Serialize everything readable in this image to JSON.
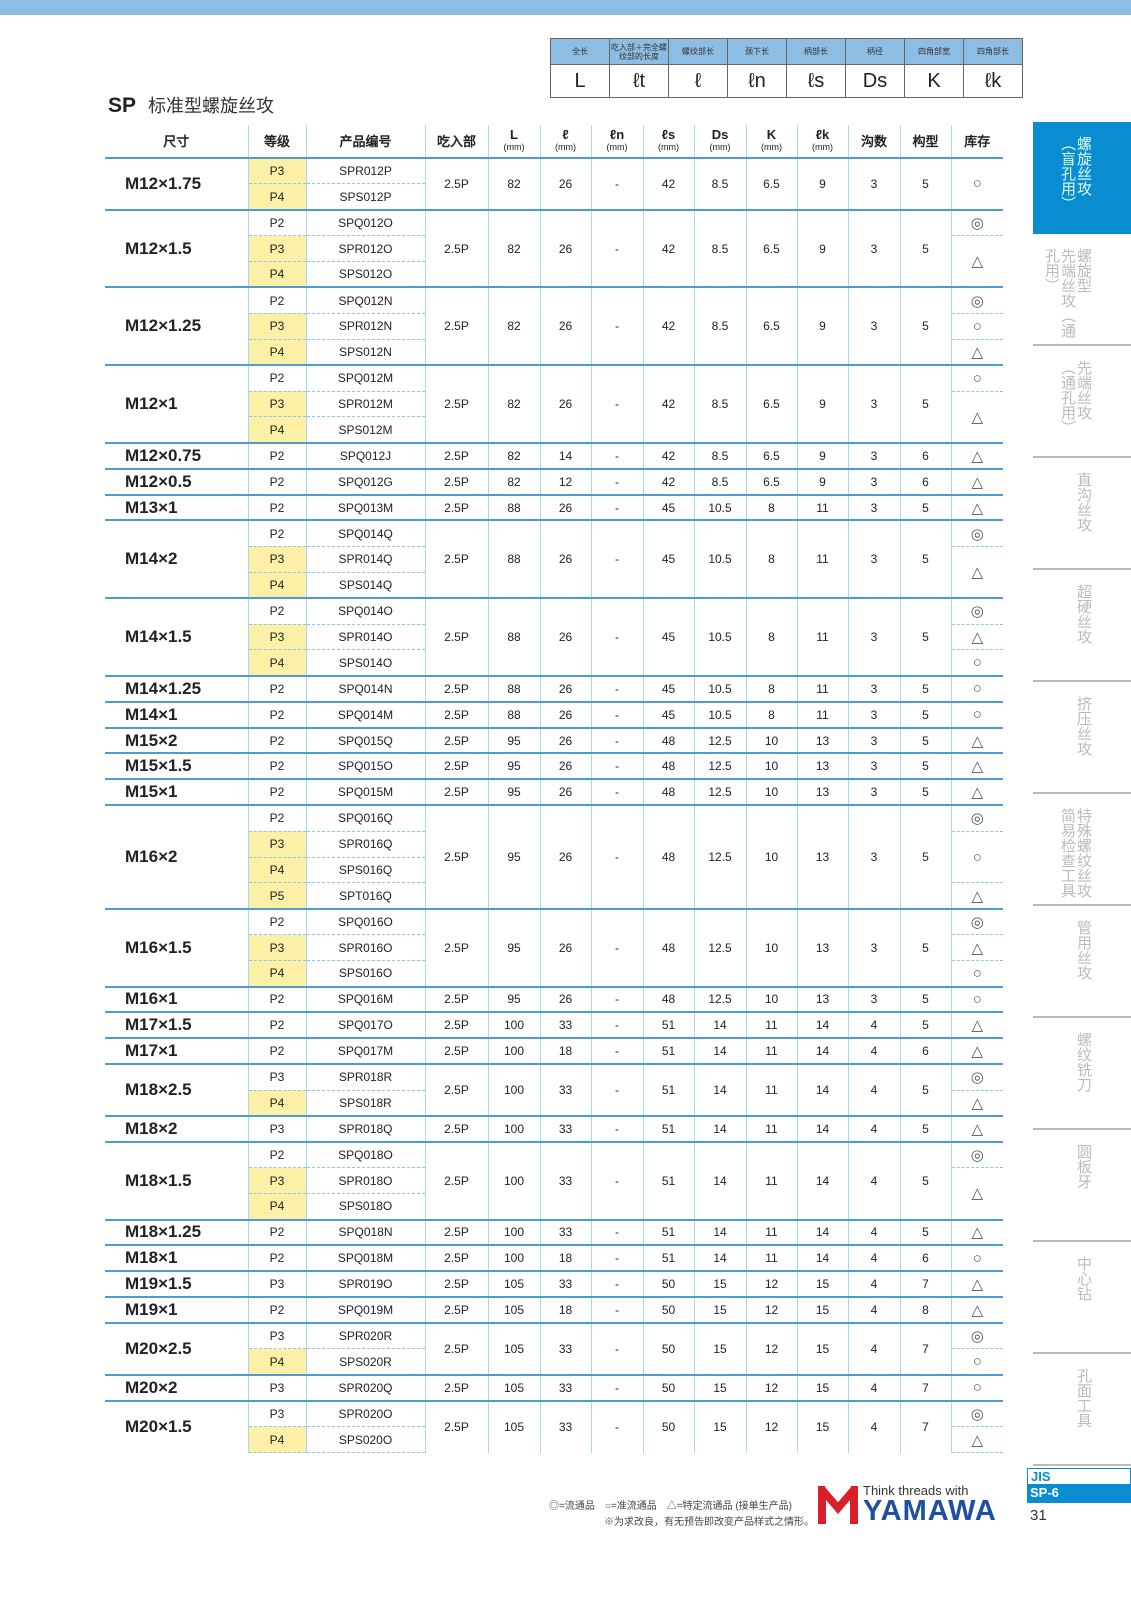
{
  "title": {
    "code": "SP",
    "name": "标准型螺旋丝攻"
  },
  "legend": {
    "labels": [
      "全长",
      "吃入部＋完全螺纹部的长度",
      "螺纹部长",
      "颈下长",
      "柄部长",
      "柄径",
      "四角部宽",
      "四角部长"
    ],
    "symbols": [
      "L",
      "ℓt",
      "ℓ",
      "ℓn",
      "ℓs",
      "Ds",
      "K",
      "ℓk"
    ]
  },
  "headers": [
    "尺寸",
    "等级",
    "产品编号",
    "吃入部",
    "L",
    "ℓ",
    "ℓn",
    "ℓs",
    "Ds",
    "K",
    "ℓk",
    "沟数",
    "构型",
    "库存"
  ],
  "unit": "(mm)",
  "colors": {
    "accent": "#0a8cd0",
    "highlight": "#fbf0a6",
    "grid": "#4e9bd0"
  },
  "groups": [
    {
      "size": "M12×1.75",
      "rows": [
        [
          "P3",
          "SPR012P",
          1
        ],
        [
          "P4",
          "SPS012P",
          1
        ]
      ],
      "v": [
        "2.5P",
        "82",
        "26",
        "-",
        "42",
        "8.5",
        "6.5",
        "9",
        "3",
        "5"
      ],
      "stock": [
        [
          "○",
          2
        ]
      ]
    },
    {
      "size": "M12×1.5",
      "rows": [
        [
          "P2",
          "SPQ012O",
          0
        ],
        [
          "P3",
          "SPR012O",
          1
        ],
        [
          "P4",
          "SPS012O",
          1
        ]
      ],
      "v": [
        "2.5P",
        "82",
        "26",
        "-",
        "42",
        "8.5",
        "6.5",
        "9",
        "3",
        "5"
      ],
      "stock": [
        [
          "◎",
          1
        ],
        [
          "△",
          2
        ]
      ]
    },
    {
      "size": "M12×1.25",
      "rows": [
        [
          "P2",
          "SPQ012N",
          0
        ],
        [
          "P3",
          "SPR012N",
          1
        ],
        [
          "P4",
          "SPS012N",
          1
        ]
      ],
      "v": [
        "2.5P",
        "82",
        "26",
        "-",
        "42",
        "8.5",
        "6.5",
        "9",
        "3",
        "5"
      ],
      "stock": [
        [
          "◎",
          1
        ],
        [
          "○",
          1
        ],
        [
          "△",
          1
        ]
      ]
    },
    {
      "size": "M12×1",
      "rows": [
        [
          "P2",
          "SPQ012M",
          0
        ],
        [
          "P3",
          "SPR012M",
          1
        ],
        [
          "P4",
          "SPS012M",
          1
        ]
      ],
      "v": [
        "2.5P",
        "82",
        "26",
        "-",
        "42",
        "8.5",
        "6.5",
        "9",
        "3",
        "5"
      ],
      "stock": [
        [
          "○",
          1
        ],
        [
          "△",
          2
        ]
      ]
    },
    {
      "size": "M12×0.75",
      "rows": [
        [
          "P2",
          "SPQ012J",
          0
        ]
      ],
      "v": [
        "2.5P",
        "82",
        "14",
        "-",
        "42",
        "8.5",
        "6.5",
        "9",
        "3",
        "6"
      ],
      "stock": [
        [
          "△",
          1
        ]
      ]
    },
    {
      "size": "M12×0.5",
      "rows": [
        [
          "P2",
          "SPQ012G",
          0
        ]
      ],
      "v": [
        "2.5P",
        "82",
        "12",
        "-",
        "42",
        "8.5",
        "6.5",
        "9",
        "3",
        "6"
      ],
      "stock": [
        [
          "△",
          1
        ]
      ]
    },
    {
      "size": "M13×1",
      "rows": [
        [
          "P2",
          "SPQ013M",
          0
        ]
      ],
      "v": [
        "2.5P",
        "88",
        "26",
        "-",
        "45",
        "10.5",
        "8",
        "11",
        "3",
        "5"
      ],
      "stock": [
        [
          "△",
          1
        ]
      ]
    },
    {
      "size": "M14×2",
      "rows": [
        [
          "P2",
          "SPQ014Q",
          0
        ],
        [
          "P3",
          "SPR014Q",
          1
        ],
        [
          "P4",
          "SPS014Q",
          1
        ]
      ],
      "v": [
        "2.5P",
        "88",
        "26",
        "-",
        "45",
        "10.5",
        "8",
        "11",
        "3",
        "5"
      ],
      "stock": [
        [
          "◎",
          1
        ],
        [
          "△",
          2
        ]
      ]
    },
    {
      "size": "M14×1.5",
      "rows": [
        [
          "P2",
          "SPQ014O",
          0
        ],
        [
          "P3",
          "SPR014O",
          1
        ],
        [
          "P4",
          "SPS014O",
          1
        ]
      ],
      "v": [
        "2.5P",
        "88",
        "26",
        "-",
        "45",
        "10.5",
        "8",
        "11",
        "3",
        "5"
      ],
      "stock": [
        [
          "◎",
          1
        ],
        [
          "△",
          1
        ],
        [
          "○",
          1
        ]
      ]
    },
    {
      "size": "M14×1.25",
      "rows": [
        [
          "P2",
          "SPQ014N",
          0
        ]
      ],
      "v": [
        "2.5P",
        "88",
        "26",
        "-",
        "45",
        "10.5",
        "8",
        "11",
        "3",
        "5"
      ],
      "stock": [
        [
          "○",
          1
        ]
      ]
    },
    {
      "size": "M14×1",
      "rows": [
        [
          "P2",
          "SPQ014M",
          0
        ]
      ],
      "v": [
        "2.5P",
        "88",
        "26",
        "-",
        "45",
        "10.5",
        "8",
        "11",
        "3",
        "5"
      ],
      "stock": [
        [
          "○",
          1
        ]
      ]
    },
    {
      "size": "M15×2",
      "rows": [
        [
          "P2",
          "SPQ015Q",
          0
        ]
      ],
      "v": [
        "2.5P",
        "95",
        "26",
        "-",
        "48",
        "12.5",
        "10",
        "13",
        "3",
        "5"
      ],
      "stock": [
        [
          "△",
          1
        ]
      ]
    },
    {
      "size": "M15×1.5",
      "rows": [
        [
          "P2",
          "SPQ015O",
          0
        ]
      ],
      "v": [
        "2.5P",
        "95",
        "26",
        "-",
        "48",
        "12.5",
        "10",
        "13",
        "3",
        "5"
      ],
      "stock": [
        [
          "△",
          1
        ]
      ]
    },
    {
      "size": "M15×1",
      "rows": [
        [
          "P2",
          "SPQ015M",
          0
        ]
      ],
      "v": [
        "2.5P",
        "95",
        "26",
        "-",
        "48",
        "12.5",
        "10",
        "13",
        "3",
        "5"
      ],
      "stock": [
        [
          "△",
          1
        ]
      ]
    },
    {
      "size": "M16×2",
      "rows": [
        [
          "P2",
          "SPQ016Q",
          0
        ],
        [
          "P3",
          "SPR016Q",
          1
        ],
        [
          "P4",
          "SPS016Q",
          1
        ],
        [
          "P5",
          "SPT016Q",
          1
        ]
      ],
      "v": [
        "2.5P",
        "95",
        "26",
        "-",
        "48",
        "12.5",
        "10",
        "13",
        "3",
        "5"
      ],
      "stock": [
        [
          "◎",
          1
        ],
        [
          "○",
          2
        ],
        [
          "△",
          1
        ]
      ]
    },
    {
      "size": "M16×1.5",
      "rows": [
        [
          "P2",
          "SPQ016O",
          0
        ],
        [
          "P3",
          "SPR016O",
          1
        ],
        [
          "P4",
          "SPS016O",
          1
        ]
      ],
      "v": [
        "2.5P",
        "95",
        "26",
        "-",
        "48",
        "12.5",
        "10",
        "13",
        "3",
        "5"
      ],
      "stock": [
        [
          "◎",
          1
        ],
        [
          "△",
          1
        ],
        [
          "○",
          1
        ]
      ]
    },
    {
      "size": "M16×1",
      "rows": [
        [
          "P2",
          "SPQ016M",
          0
        ]
      ],
      "v": [
        "2.5P",
        "95",
        "26",
        "-",
        "48",
        "12.5",
        "10",
        "13",
        "3",
        "5"
      ],
      "stock": [
        [
          "○",
          1
        ]
      ]
    },
    {
      "size": "M17×1.5",
      "rows": [
        [
          "P2",
          "SPQ017O",
          0
        ]
      ],
      "v": [
        "2.5P",
        "100",
        "33",
        "-",
        "51",
        "14",
        "11",
        "14",
        "4",
        "5"
      ],
      "stock": [
        [
          "△",
          1
        ]
      ]
    },
    {
      "size": "M17×1",
      "rows": [
        [
          "P2",
          "SPQ017M",
          0
        ]
      ],
      "v": [
        "2.5P",
        "100",
        "18",
        "-",
        "51",
        "14",
        "11",
        "14",
        "4",
        "6"
      ],
      "stock": [
        [
          "△",
          1
        ]
      ]
    },
    {
      "size": "M18×2.5",
      "rows": [
        [
          "P3",
          "SPR018R",
          0
        ],
        [
          "P4",
          "SPS018R",
          1
        ]
      ],
      "v": [
        "2.5P",
        "100",
        "33",
        "-",
        "51",
        "14",
        "11",
        "14",
        "4",
        "5"
      ],
      "stock": [
        [
          "◎",
          1
        ],
        [
          "△",
          1
        ]
      ]
    },
    {
      "size": "M18×2",
      "rows": [
        [
          "P3",
          "SPR018Q",
          0
        ]
      ],
      "v": [
        "2.5P",
        "100",
        "33",
        "-",
        "51",
        "14",
        "11",
        "14",
        "4",
        "5"
      ],
      "stock": [
        [
          "△",
          1
        ]
      ]
    },
    {
      "size": "M18×1.5",
      "rows": [
        [
          "P2",
          "SPQ018O",
          0
        ],
        [
          "P3",
          "SPR018O",
          1
        ],
        [
          "P4",
          "SPS018O",
          1
        ]
      ],
      "v": [
        "2.5P",
        "100",
        "33",
        "-",
        "51",
        "14",
        "11",
        "14",
        "4",
        "5"
      ],
      "stock": [
        [
          "◎",
          1
        ],
        [
          "△",
          2
        ]
      ]
    },
    {
      "size": "M18×1.25",
      "rows": [
        [
          "P2",
          "SPQ018N",
          0
        ]
      ],
      "v": [
        "2.5P",
        "100",
        "33",
        "-",
        "51",
        "14",
        "11",
        "14",
        "4",
        "5"
      ],
      "stock": [
        [
          "△",
          1
        ]
      ]
    },
    {
      "size": "M18×1",
      "rows": [
        [
          "P2",
          "SPQ018M",
          0
        ]
      ],
      "v": [
        "2.5P",
        "100",
        "18",
        "-",
        "51",
        "14",
        "11",
        "14",
        "4",
        "6"
      ],
      "stock": [
        [
          "○",
          1
        ]
      ]
    },
    {
      "size": "M19×1.5",
      "rows": [
        [
          "P3",
          "SPR019O",
          0
        ]
      ],
      "v": [
        "2.5P",
        "105",
        "33",
        "-",
        "50",
        "15",
        "12",
        "15",
        "4",
        "7"
      ],
      "stock": [
        [
          "△",
          1
        ]
      ]
    },
    {
      "size": "M19×1",
      "rows": [
        [
          "P2",
          "SPQ019M",
          0
        ]
      ],
      "v": [
        "2.5P",
        "105",
        "18",
        "-",
        "50",
        "15",
        "12",
        "15",
        "4",
        "8"
      ],
      "stock": [
        [
          "△",
          1
        ]
      ]
    },
    {
      "size": "M20×2.5",
      "rows": [
        [
          "P3",
          "SPR020R",
          0
        ],
        [
          "P4",
          "SPS020R",
          1
        ]
      ],
      "v": [
        "2.5P",
        "105",
        "33",
        "-",
        "50",
        "15",
        "12",
        "15",
        "4",
        "7"
      ],
      "stock": [
        [
          "◎",
          1
        ],
        [
          "○",
          1
        ]
      ]
    },
    {
      "size": "M20×2",
      "rows": [
        [
          "P3",
          "SPR020Q",
          0
        ]
      ],
      "v": [
        "2.5P",
        "105",
        "33",
        "-",
        "50",
        "15",
        "12",
        "15",
        "4",
        "7"
      ],
      "stock": [
        [
          "○",
          1
        ]
      ]
    },
    {
      "size": "M20×1.5",
      "rows": [
        [
          "P3",
          "SPR020O",
          0
        ],
        [
          "P4",
          "SPS020O",
          1
        ]
      ],
      "v": [
        "2.5P",
        "105",
        "33",
        "-",
        "50",
        "15",
        "12",
        "15",
        "4",
        "7"
      ],
      "stock": [
        [
          "◎",
          1
        ],
        [
          "△",
          1
        ]
      ]
    }
  ],
  "sidebar": [
    {
      "main": "螺旋丝攻",
      "sub": "（盲孔用）",
      "active": true
    },
    {
      "main": "螺旋型",
      "sub": "先端丝攻（通孔用）"
    },
    {
      "main": "先端丝攻",
      "sub": "（通孔用）"
    },
    {
      "main": "直沟丝攻",
      "sub": ""
    },
    {
      "main": "超硬丝攻",
      "sub": ""
    },
    {
      "main": "挤压丝攻",
      "sub": ""
    },
    {
      "main": "特殊螺纹丝攻",
      "sub": "简易检查工具"
    },
    {
      "main": "管用丝攻",
      "sub": ""
    },
    {
      "main": "螺纹铣刀",
      "sub": ""
    },
    {
      "main": "圆板牙",
      "sub": ""
    },
    {
      "main": "中心钻",
      "sub": ""
    },
    {
      "main": "孔面工具",
      "sub": ""
    }
  ],
  "footer": {
    "legend": "◎=流通品　○=准流通品　△=特定流通品 (接单生产品)",
    "note": "※为求改良，有无预告即改变产品样式之情形。",
    "tagline": "Think threads with",
    "brand": "YAMAWA",
    "standard": "JIS",
    "section": "SP-6",
    "page": "31"
  }
}
